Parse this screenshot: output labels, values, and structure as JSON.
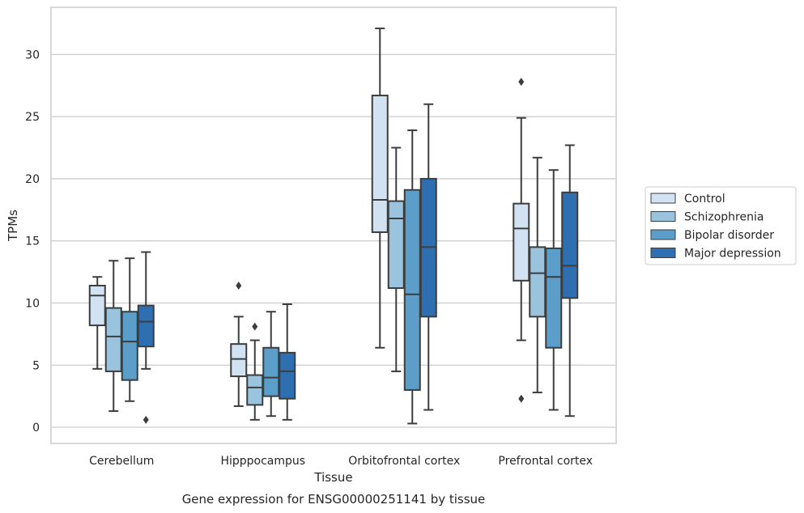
{
  "chart_data": {
    "type": "boxplot",
    "title": "",
    "caption": "Gene expression for ENSG00000251141 by tissue",
    "xlabel": "Tissue",
    "ylabel": "TPMs",
    "ylim": [
      -1.3,
      33.8
    ],
    "yticks": [
      0,
      5,
      10,
      15,
      20,
      25,
      30
    ],
    "grid": true,
    "legend_position": "right",
    "categories": [
      "Cerebellum",
      "Hipppocampus",
      "Orbitofrontal cortex",
      "Prefrontal cortex"
    ],
    "series": [
      {
        "name": "Control",
        "color": "#d1e2f2",
        "boxes": [
          {
            "whislo": 4.7,
            "q1": 8.2,
            "med": 10.6,
            "q3": 11.4,
            "whishi": 12.1,
            "fliers": []
          },
          {
            "whislo": 1.7,
            "q1": 4.1,
            "med": 5.5,
            "q3": 6.7,
            "whishi": 8.9,
            "fliers": [
              11.4
            ]
          },
          {
            "whislo": 6.4,
            "q1": 15.7,
            "med": 18.3,
            "q3": 26.7,
            "whishi": 32.1,
            "fliers": []
          },
          {
            "whislo": 7.0,
            "q1": 11.8,
            "med": 16.0,
            "q3": 18.0,
            "whishi": 24.9,
            "fliers": [
              27.8,
              2.3
            ]
          }
        ]
      },
      {
        "name": "Schizophrenia",
        "color": "#9ac4de",
        "boxes": [
          {
            "whislo": 1.3,
            "q1": 4.5,
            "med": 7.3,
            "q3": 9.6,
            "whishi": 13.4,
            "fliers": []
          },
          {
            "whislo": 0.6,
            "q1": 1.8,
            "med": 3.2,
            "q3": 4.2,
            "whishi": 7.0,
            "fliers": [
              8.1
            ]
          },
          {
            "whislo": 4.5,
            "q1": 11.2,
            "med": 16.8,
            "q3": 18.2,
            "whishi": 22.5,
            "fliers": []
          },
          {
            "whislo": 2.8,
            "q1": 8.9,
            "med": 12.4,
            "q3": 14.5,
            "whishi": 21.7,
            "fliers": []
          }
        ]
      },
      {
        "name": "Bipolar disorder",
        "color": "#5a9ec9",
        "boxes": [
          {
            "whislo": 2.1,
            "q1": 3.8,
            "med": 6.9,
            "q3": 9.3,
            "whishi": 13.6,
            "fliers": []
          },
          {
            "whislo": 0.9,
            "q1": 2.5,
            "med": 4.0,
            "q3": 6.4,
            "whishi": 9.3,
            "fliers": []
          },
          {
            "whislo": 0.3,
            "q1": 3.0,
            "med": 10.7,
            "q3": 19.1,
            "whishi": 23.9,
            "fliers": []
          },
          {
            "whislo": 1.4,
            "q1": 6.4,
            "med": 12.1,
            "q3": 14.4,
            "whishi": 20.7,
            "fliers": []
          }
        ]
      },
      {
        "name": "Major depression",
        "color": "#2e6fb2",
        "boxes": [
          {
            "whislo": 4.7,
            "q1": 6.5,
            "med": 8.5,
            "q3": 9.8,
            "whishi": 14.1,
            "fliers": [
              0.6
            ]
          },
          {
            "whislo": 0.6,
            "q1": 2.3,
            "med": 4.5,
            "q3": 6.0,
            "whishi": 9.9,
            "fliers": []
          },
          {
            "whislo": 1.4,
            "q1": 8.9,
            "med": 14.5,
            "q3": 20.0,
            "whishi": 26.0,
            "fliers": []
          },
          {
            "whislo": 0.9,
            "q1": 10.4,
            "med": 13.0,
            "q3": 18.9,
            "whishi": 22.7,
            "fliers": []
          }
        ]
      }
    ]
  }
}
